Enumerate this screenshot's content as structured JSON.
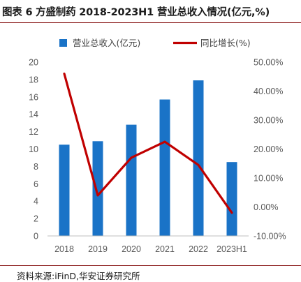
{
  "header": {
    "title": "图表 6 方盛制药 2018-2023H1 营业总收入情况(亿元,%)"
  },
  "footer": {
    "source": "资料来源:iFinD,华安证券研究所"
  },
  "colors": {
    "bar": "#1a73c7",
    "line": "#c00000",
    "rule": "#8b1a1a",
    "axis_text": "#595959"
  },
  "chart_data": {
    "type": "bar",
    "categories": [
      "2018",
      "2019",
      "2020",
      "2021",
      "2022",
      "2023H1"
    ],
    "series": [
      {
        "name": "营业总收入(亿元)",
        "type": "bar",
        "axis": "left",
        "values": [
          10.5,
          10.9,
          12.8,
          15.7,
          17.9,
          8.5
        ]
      },
      {
        "name": "同比增长(%)",
        "type": "line",
        "axis": "right",
        "values": [
          46.0,
          4.0,
          17.0,
          22.5,
          14.5,
          -2.0
        ]
      }
    ],
    "y_left": {
      "min": 0,
      "max": 20,
      "ticks": [
        "0",
        "2",
        "4",
        "6",
        "8",
        "10",
        "12",
        "14",
        "16",
        "18",
        "20"
      ]
    },
    "y_right": {
      "min": -10,
      "max": 50,
      "ticks": [
        "-10.00%",
        "0.00%",
        "10.00%",
        "20.00%",
        "30.00%",
        "40.00%",
        "50.00%"
      ]
    },
    "legend_position": "top",
    "grid": false
  }
}
